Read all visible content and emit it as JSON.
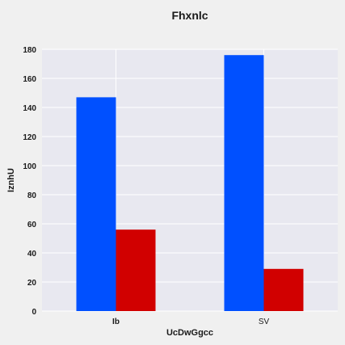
{
  "chart_data": {
    "type": "bar",
    "title": "Fhxnlc",
    "xlabel": "UcDwGgcc",
    "ylabel": "IznhU",
    "categories": [
      "Ib",
      "SV"
    ],
    "series": [
      {
        "values": [
          147,
          176
        ],
        "color": "#0050ff"
      },
      {
        "values": [
          56,
          29
        ],
        "color": "#d10000"
      }
    ],
    "ylim": [
      0,
      180
    ],
    "yticks": [
      "0",
      "20",
      "40",
      "60",
      "80",
      "100",
      "120",
      "140",
      "160",
      "180"
    ],
    "grid": true,
    "plot_background": "#e8e8f0",
    "grid_color": "#ffffff"
  }
}
